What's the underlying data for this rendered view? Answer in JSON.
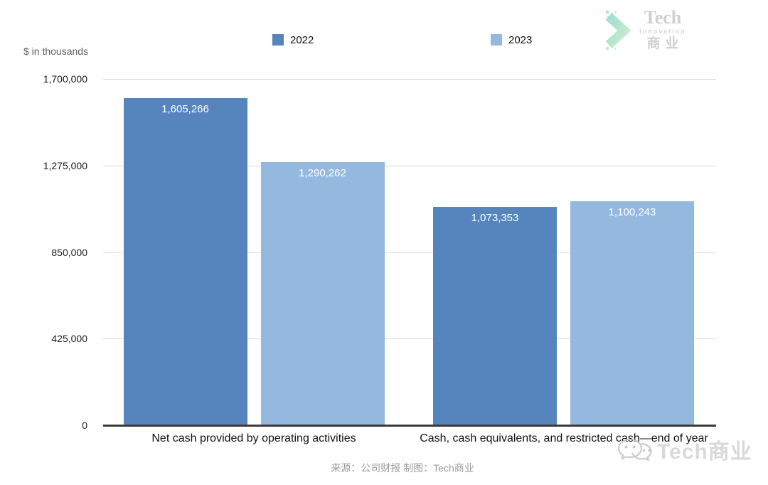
{
  "logo": {
    "name": "Tech",
    "subtitle": "Innovation",
    "cn": "商业"
  },
  "chart_data": {
    "type": "bar",
    "title": "",
    "ylabel": "$ in thousands",
    "categories": [
      "Net cash provided by operating activities",
      "Cash, cash equivalents, and restricted cash—end of year"
    ],
    "series": [
      {
        "name": "2022",
        "color": "#5585bc",
        "values": [
          1605266,
          1073353
        ],
        "value_labels": [
          "1,605,266",
          "1,073,353"
        ]
      },
      {
        "name": "2023",
        "color": "#94b8de",
        "values": [
          1290262,
          1100243
        ],
        "value_labels": [
          "1,290,262",
          "1,100,243"
        ]
      }
    ],
    "ylim": [
      0,
      1700000
    ],
    "yticks": [
      0,
      425000,
      850000,
      1275000,
      1700000
    ],
    "ytick_labels": [
      "0",
      "425,000",
      "850,000",
      "1,275,000",
      "1,700,000"
    ],
    "grid": true,
    "legend_position": "top",
    "value_label_color": "#ffffff",
    "value_label_position": "inside-top"
  },
  "footer": {
    "source": "来源：公司财报 制图：Tech商业"
  },
  "watermark": {
    "text": "Tech商业"
  }
}
